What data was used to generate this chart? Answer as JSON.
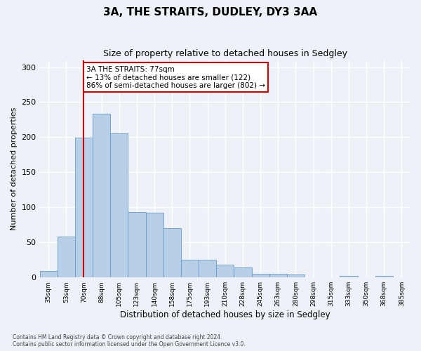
{
  "title": "3A, THE STRAITS, DUDLEY, DY3 3AA",
  "subtitle": "Size of property relative to detached houses in Sedgley",
  "xlabel": "Distribution of detached houses by size in Sedgley",
  "ylabel": "Number of detached properties",
  "categories": [
    "35sqm",
    "53sqm",
    "70sqm",
    "88sqm",
    "105sqm",
    "123sqm",
    "140sqm",
    "158sqm",
    "175sqm",
    "193sqm",
    "210sqm",
    "228sqm",
    "245sqm",
    "263sqm",
    "280sqm",
    "298sqm",
    "315sqm",
    "333sqm",
    "350sqm",
    "368sqm",
    "385sqm"
  ],
  "values": [
    9,
    58,
    199,
    233,
    205,
    93,
    92,
    70,
    25,
    25,
    18,
    14,
    5,
    5,
    4,
    0,
    0,
    2,
    0,
    2,
    0
  ],
  "bar_color": "#b8cfe8",
  "bar_edge_color": "#6699cc",
  "red_line_index": 2,
  "red_line_color": "#cc0000",
  "annotation_text": "3A THE STRAITS: 77sqm\n← 13% of detached houses are smaller (122)\n86% of semi-detached houses are larger (802) →",
  "annotation_box_color": "#ffffff",
  "annotation_box_edge": "#cc0000",
  "ylim": [
    0,
    310
  ],
  "yticks": [
    0,
    50,
    100,
    150,
    200,
    250,
    300
  ],
  "background_color": "#eef2f8",
  "grid_color": "#ffffff",
  "footnote": "Contains HM Land Registry data © Crown copyright and database right 2024.\nContains public sector information licensed under the Open Government Licence v3.0."
}
